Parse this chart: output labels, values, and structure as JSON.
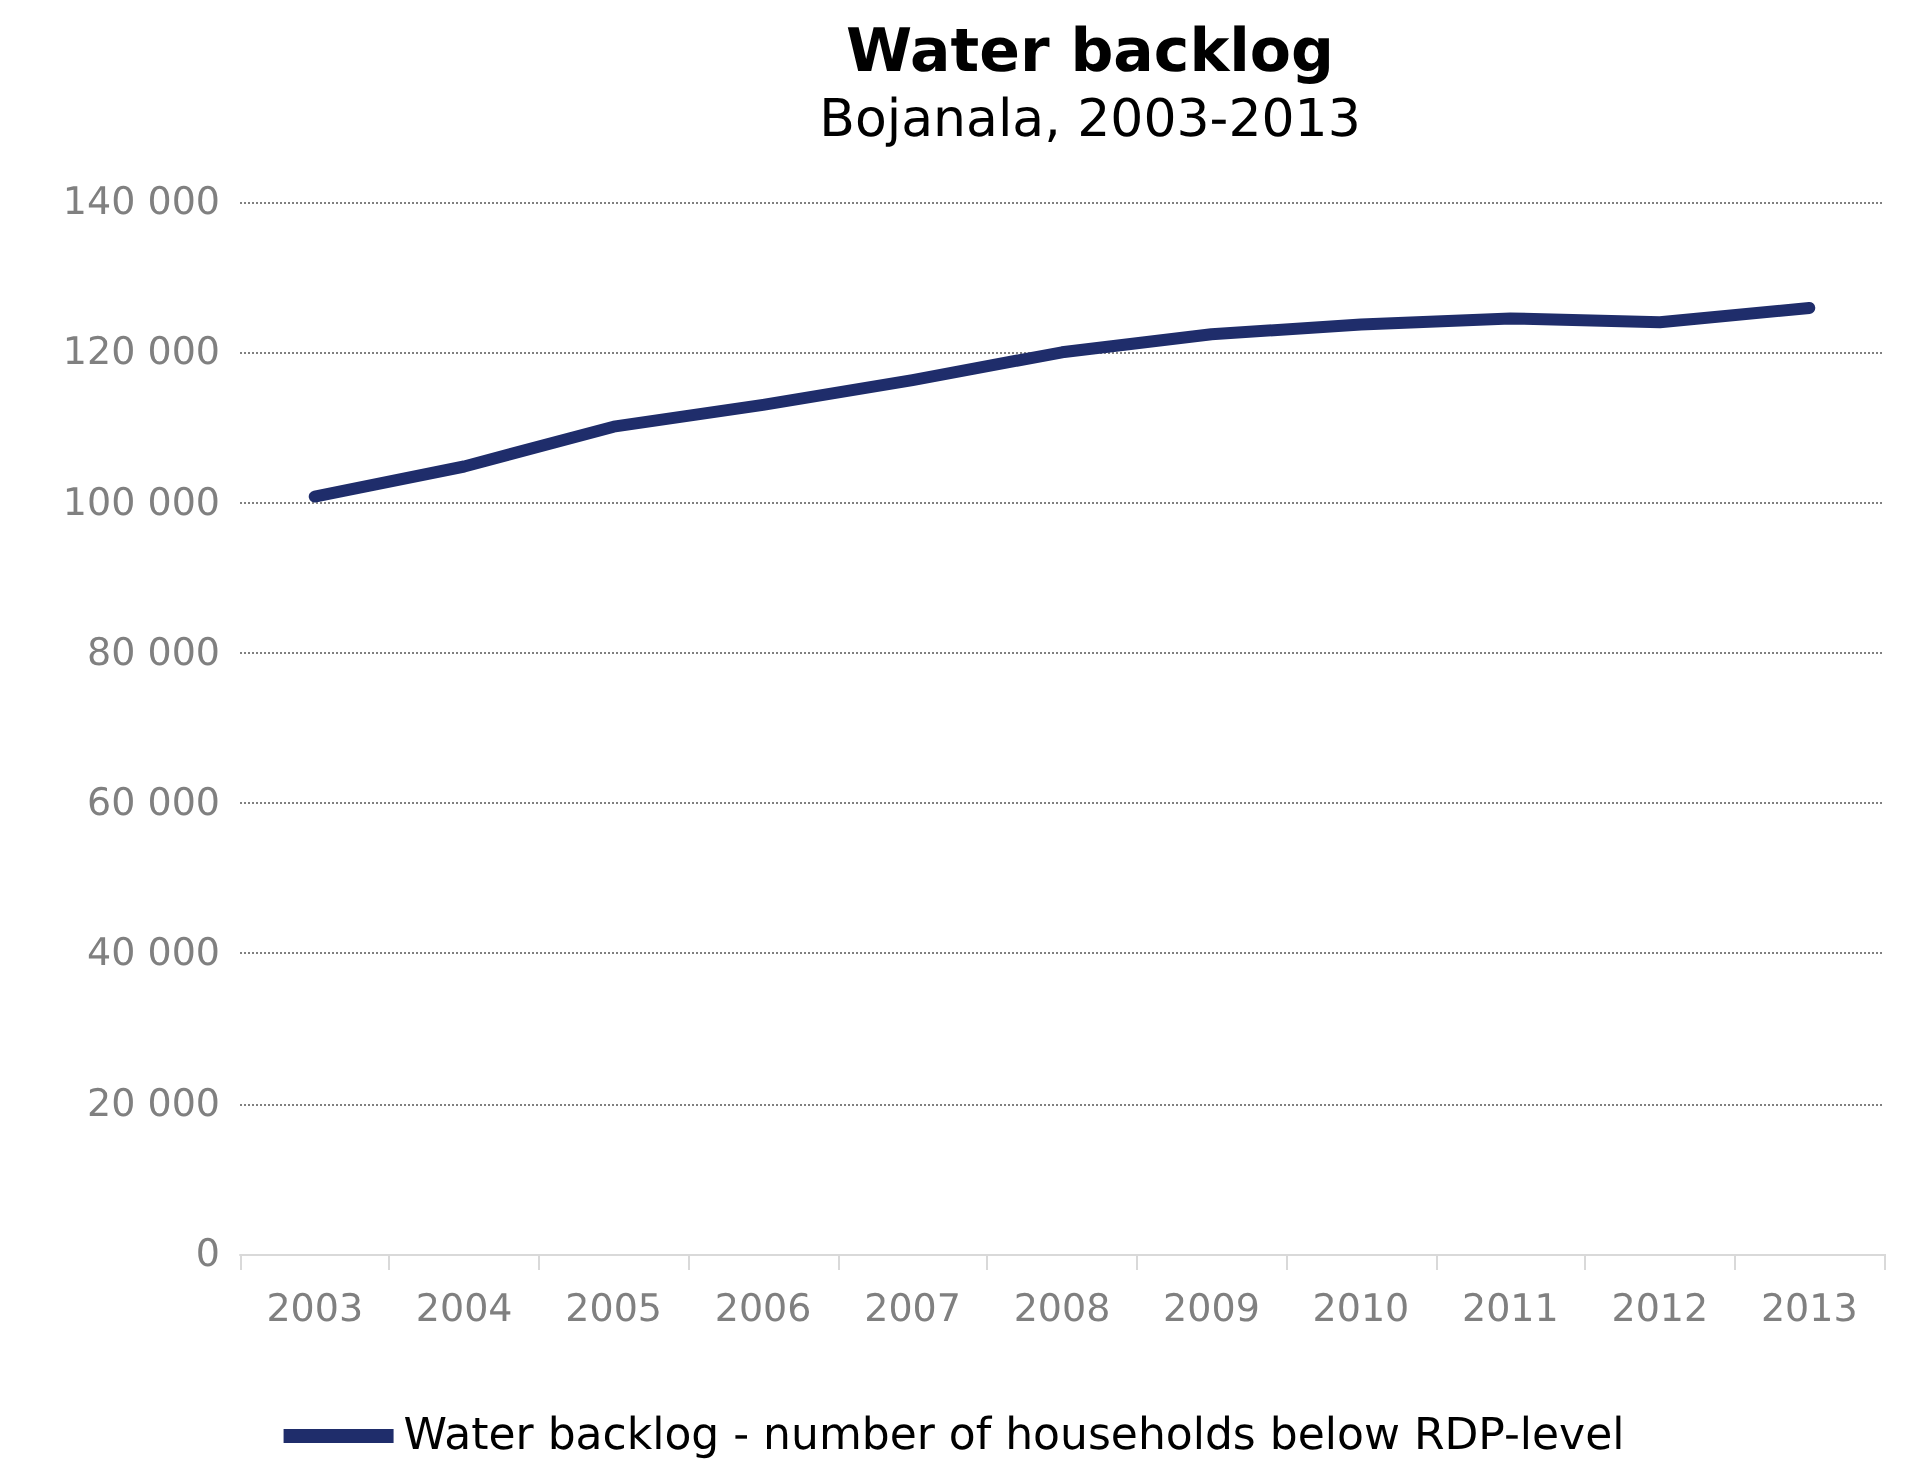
{
  "chart_data": {
    "type": "line",
    "title": "Water backlog",
    "subtitle": "Bojanala, 2003-2013",
    "categories": [
      "2003",
      "2004",
      "2005",
      "2006",
      "2007",
      "2008",
      "2009",
      "2010",
      "2011",
      "2012",
      "2013"
    ],
    "series": [
      {
        "name": "Water backlog - number of households below RDP-level",
        "color": "#1f2d6b",
        "values": [
          100800,
          104800,
          110100,
          113000,
          116300,
          120000,
          122400,
          123700,
          124500,
          124000,
          125900
        ]
      }
    ],
    "ylim": [
      0,
      140000
    ],
    "yticks": [
      {
        "value": 0,
        "label": "0"
      },
      {
        "value": 20000,
        "label": "20 000"
      },
      {
        "value": 40000,
        "label": "40 000"
      },
      {
        "value": 60000,
        "label": "60 000"
      },
      {
        "value": 80000,
        "label": "80 000"
      },
      {
        "value": 100000,
        "label": "100 000"
      },
      {
        "value": 120000,
        "label": "120 000"
      },
      {
        "value": 140000,
        "label": "140 000"
      }
    ],
    "grid": "y",
    "legend": "bottom",
    "marker": "none",
    "line_style": "solid"
  }
}
